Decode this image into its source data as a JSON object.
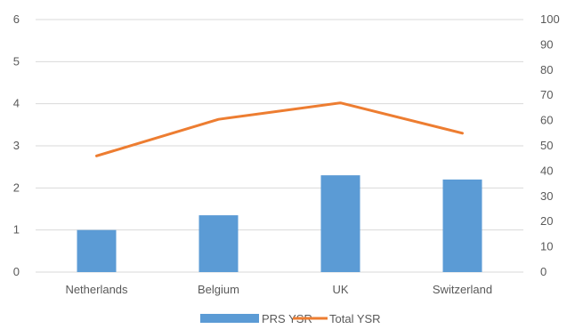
{
  "chart_data": {
    "type": "bar+line",
    "categories": [
      "Netherlands",
      "Belgium",
      "UK",
      "Switzerland"
    ],
    "series": [
      {
        "name": "PRS YSR",
        "type": "bar",
        "axis": "left",
        "color": "#5B9BD5",
        "values": [
          1.0,
          1.35,
          2.3,
          2.2
        ]
      },
      {
        "name": "Total YSR",
        "type": "line",
        "axis": "right",
        "color": "#ED7D31",
        "values": [
          46,
          60.5,
          67,
          55
        ]
      }
    ],
    "y_left": {
      "min": 0,
      "max": 6,
      "step": 1,
      "ticks": [
        "0",
        "1",
        "2",
        "3",
        "4",
        "5",
        "6"
      ]
    },
    "y_right": {
      "min": 0,
      "max": 100,
      "step": 10,
      "ticks": [
        "0",
        "10",
        "20",
        "30",
        "40",
        "50",
        "60",
        "70",
        "80",
        "90",
        "100"
      ]
    },
    "grid": true,
    "legend": "bottom-center",
    "gridline_color": "#D9D9D9"
  }
}
